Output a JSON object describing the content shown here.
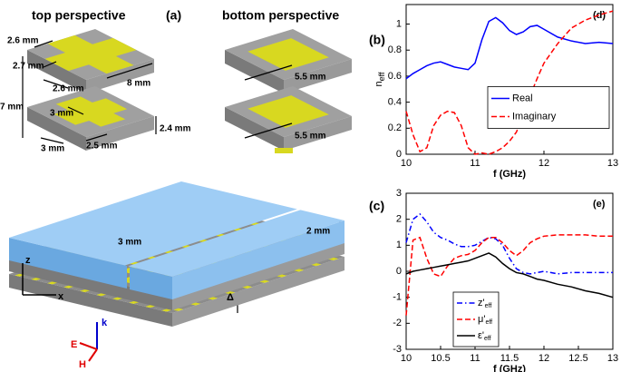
{
  "panel_labels": [
    "(a)",
    "(b)",
    "(c)"
  ],
  "illustration": {
    "titles": [
      "top perspective",
      "bottom perspective"
    ],
    "dimension_labels": [
      "2.6 mm",
      "2.7 mm",
      "2.6 mm",
      "8 mm",
      "7 mm",
      "3 mm",
      "3 mm",
      "2.5 mm",
      "2.4 mm",
      "5.5 mm",
      "5.5 mm",
      "3 mm",
      "2 mm"
    ],
    "axis_labels": [
      "z",
      "x",
      "Δ",
      "k",
      "E",
      "H"
    ]
  },
  "chart_data": [
    {
      "type": "line",
      "annotation": "(d)",
      "xlabel": "f (GHz)",
      "ylabel": "n",
      "ylabel_subscript": "eff",
      "xlim": [
        10,
        13
      ],
      "xticks": [
        10,
        11,
        12,
        13
      ],
      "ylim": [
        0,
        1.15
      ],
      "yticks": [
        0,
        0.2,
        0.4,
        0.6,
        0.8,
        1
      ],
      "grid": false,
      "legend": "center right",
      "x": [
        10,
        10.1,
        10.2,
        10.3,
        10.4,
        10.5,
        10.6,
        10.7,
        10.8,
        10.9,
        11,
        11.1,
        11.2,
        11.3,
        11.4,
        11.5,
        11.6,
        11.7,
        11.8,
        11.9,
        12,
        12.2,
        12.4,
        12.6,
        12.8,
        13
      ],
      "series": [
        {
          "name": "Real",
          "color": "#0000ff",
          "dash": "solid",
          "values": [
            0.58,
            0.62,
            0.65,
            0.68,
            0.7,
            0.71,
            0.69,
            0.67,
            0.66,
            0.65,
            0.7,
            0.88,
            1.02,
            1.05,
            1.01,
            0.95,
            0.92,
            0.94,
            0.98,
            0.99,
            0.96,
            0.9,
            0.87,
            0.85,
            0.86,
            0.85
          ]
        },
        {
          "name": "Imaginary",
          "color": "#ff0000",
          "dash": "dashed",
          "values": [
            0.33,
            0.15,
            0.02,
            0.05,
            0.22,
            0.3,
            0.33,
            0.32,
            0.22,
            0.05,
            0.0,
            0.01,
            0.0,
            0.02,
            0.05,
            0.1,
            0.17,
            0.3,
            0.45,
            0.58,
            0.7,
            0.85,
            0.97,
            1.03,
            1.07,
            1.1
          ]
        }
      ]
    },
    {
      "type": "line",
      "annotation": "(e)",
      "xlabel": "f (GHz)",
      "xlim": [
        10,
        13
      ],
      "xticks": [
        10,
        10.5,
        11,
        11.5,
        12,
        12.5,
        13
      ],
      "ylim": [
        -3,
        3
      ],
      "yticks": [
        -3,
        -2,
        -1,
        0,
        1,
        2,
        3
      ],
      "grid": false,
      "legend": "lower left",
      "x": [
        10,
        10.1,
        10.2,
        10.3,
        10.4,
        10.5,
        10.6,
        10.7,
        10.8,
        10.9,
        11,
        11.1,
        11.2,
        11.3,
        11.4,
        11.5,
        11.6,
        11.7,
        11.8,
        11.9,
        12,
        12.2,
        12.4,
        12.6,
        12.8,
        13
      ],
      "series": [
        {
          "name": "z'",
          "subscript": "eff",
          "color": "#0000ff",
          "dash": "dashdot",
          "values": [
            1.1,
            2.0,
            2.2,
            1.9,
            1.5,
            1.3,
            1.2,
            1.05,
            0.95,
            0.95,
            1.0,
            1.15,
            1.3,
            1.25,
            1.0,
            0.5,
            0.1,
            -0.05,
            -0.1,
            -0.05,
            0.0,
            -0.1,
            -0.05,
            -0.05,
            -0.05,
            -0.05
          ]
        },
        {
          "name": "μ'",
          "subscript": "eff",
          "color": "#ff0000",
          "dash": "dashed",
          "values": [
            -1.7,
            1.2,
            1.3,
            0.5,
            -0.1,
            -0.2,
            0.2,
            0.5,
            0.6,
            0.65,
            0.8,
            1.1,
            1.3,
            1.3,
            1.1,
            0.8,
            0.6,
            0.8,
            1.1,
            1.25,
            1.35,
            1.4,
            1.4,
            1.4,
            1.35,
            1.35
          ]
        },
        {
          "name": "ε'",
          "subscript": "eff",
          "color": "#000000",
          "dash": "solid",
          "values": [
            -0.1,
            0.0,
            0.05,
            0.1,
            0.15,
            0.2,
            0.25,
            0.3,
            0.35,
            0.4,
            0.5,
            0.6,
            0.7,
            0.55,
            0.3,
            0.1,
            -0.05,
            -0.1,
            -0.2,
            -0.3,
            -0.35,
            -0.5,
            -0.6,
            -0.75,
            -0.85,
            -1.0
          ]
        }
      ]
    }
  ]
}
